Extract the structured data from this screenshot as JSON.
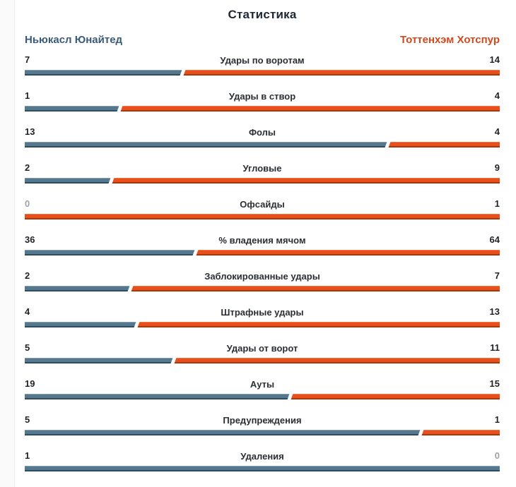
{
  "header": {
    "title": "Статистика"
  },
  "teams": {
    "home": {
      "name": "Ньюкасл Юнайтед",
      "color": "#3a5a7a"
    },
    "away": {
      "name": "Тоттенхэм Хотспур",
      "color": "#d2491d"
    }
  },
  "colors": {
    "home_bar": "#56788e",
    "home_bar_top": "#7f9bac",
    "home_bar_bottom": "#2e4d5e",
    "away_bar": "#e84f1c",
    "away_bar_top": "#f0713d",
    "away_bar_bottom": "#a23a0e",
    "value_text": "#1f2227",
    "zero_value_text": "#9da2a8",
    "label_text": "#2b2e33",
    "title_text": "#1d2733"
  },
  "chart_data": {
    "type": "bar",
    "orientation": "horizontal-paired",
    "title": "Статистика",
    "legend_position": "top",
    "categories": [
      "Удары по воротам",
      "Удары в створ",
      "Фолы",
      "Угловые",
      "Офсайды",
      "% владения мячом",
      "Заблокированные удары",
      "Штрафные удары",
      "Удары от ворот",
      "Ауты",
      "Предупреждения",
      "Удаления"
    ],
    "series": [
      {
        "name": "Ньюкасл Юнайтед",
        "color": "#56788e",
        "values": [
          7,
          1,
          13,
          2,
          0,
          36,
          2,
          4,
          5,
          19,
          5,
          1
        ]
      },
      {
        "name": "Тоттенхэм Хотспур",
        "color": "#e84f1c",
        "values": [
          14,
          4,
          4,
          9,
          1,
          64,
          7,
          13,
          11,
          15,
          1,
          0
        ]
      }
    ],
    "bar_split_rule": "left_width_pct = home / (home + away) * 100"
  }
}
